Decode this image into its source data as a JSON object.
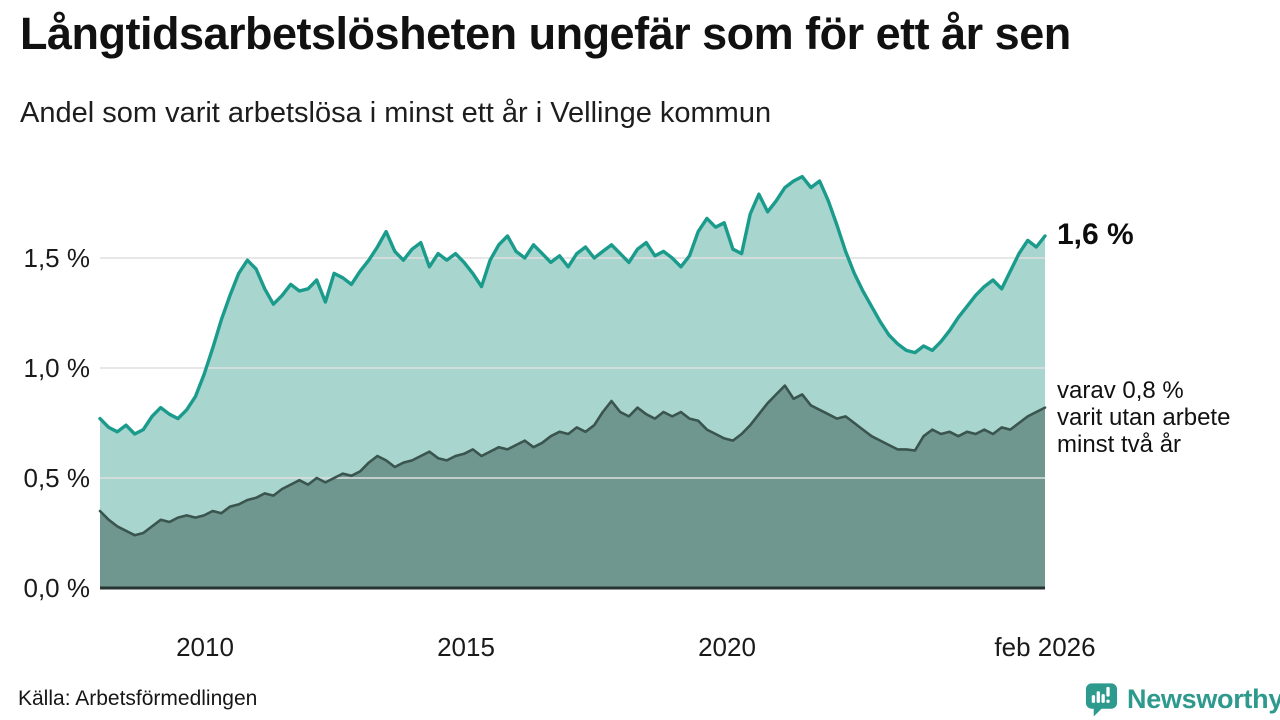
{
  "header": {
    "title": "Långtidsarbetslösheten ungefär som för ett år sen",
    "subtitle": "Andel som varit arbetslösa i minst ett år i Vellinge kommun"
  },
  "annotations": {
    "latest_total": "1,6 %",
    "two_year_lines": [
      "varav 0,8 %",
      "varit utan arbete",
      "minst två år"
    ]
  },
  "footer": {
    "source": "Källa: Arbetsförmedlingen",
    "logo_text": "Newsworthy"
  },
  "colors": {
    "total_line": "#1b9b8c",
    "total_fill": "#a8d5ce",
    "two_year_line": "#3a544e",
    "two_year_fill": "#6f968f",
    "gridline": "#dfdfdf",
    "axis_line": "#263330",
    "brand_teal": "#2d9a8d",
    "text": "#111111"
  },
  "chart_data": {
    "type": "area",
    "title": "Långtidsarbetslösheten ungefär som för ett år sen",
    "subtitle": "Andel som varit arbetslösa i minst ett år i Vellinge kommun",
    "unit": "%",
    "x_start_year": 2008.0,
    "x_end_year": 2026.0833,
    "x_step_months": 2,
    "x_ticks": [
      2010,
      2015,
      2020,
      2026.0833
    ],
    "x_tick_labels": [
      "2010",
      "2015",
      "2020",
      "feb 2026"
    ],
    "y_ticks": [
      0,
      0.5,
      1.0,
      1.5
    ],
    "y_tick_labels": [
      "0,0 %",
      "0,5 %",
      "1,0 %",
      "1,5 %"
    ],
    "ylim": [
      0,
      1.9
    ],
    "grid": "horizontal",
    "legend_position": "right-annotations",
    "series": [
      {
        "name": "Arbetslösa minst ett år",
        "latest_value": 1.6,
        "line_color": "#1b9b8c",
        "fill_color": "#a8d5ce",
        "values": [
          0.77,
          0.73,
          0.71,
          0.74,
          0.7,
          0.72,
          0.78,
          0.82,
          0.79,
          0.77,
          0.81,
          0.87,
          0.97,
          1.09,
          1.22,
          1.33,
          1.43,
          1.49,
          1.45,
          1.36,
          1.29,
          1.33,
          1.38,
          1.35,
          1.36,
          1.4,
          1.3,
          1.43,
          1.41,
          1.38,
          1.44,
          1.49,
          1.55,
          1.62,
          1.53,
          1.49,
          1.54,
          1.57,
          1.46,
          1.52,
          1.49,
          1.52,
          1.48,
          1.43,
          1.37,
          1.49,
          1.56,
          1.6,
          1.53,
          1.5,
          1.56,
          1.52,
          1.48,
          1.51,
          1.46,
          1.52,
          1.55,
          1.5,
          1.53,
          1.56,
          1.52,
          1.48,
          1.54,
          1.57,
          1.51,
          1.53,
          1.5,
          1.46,
          1.51,
          1.62,
          1.68,
          1.64,
          1.66,
          1.54,
          1.52,
          1.7,
          1.79,
          1.71,
          1.76,
          1.82,
          1.85,
          1.87,
          1.82,
          1.85,
          1.76,
          1.65,
          1.53,
          1.43,
          1.35,
          1.28,
          1.21,
          1.15,
          1.11,
          1.08,
          1.07,
          1.1,
          1.08,
          1.12,
          1.17,
          1.23,
          1.28,
          1.33,
          1.37,
          1.4,
          1.36,
          1.44,
          1.52,
          1.58,
          1.55,
          1.6
        ]
      },
      {
        "name": "varav utan arbete minst två år",
        "latest_value": 0.8,
        "line_color": "#3a544e",
        "fill_color": "#6f968f",
        "values": [
          0.35,
          0.31,
          0.28,
          0.26,
          0.24,
          0.25,
          0.28,
          0.31,
          0.3,
          0.32,
          0.33,
          0.32,
          0.33,
          0.35,
          0.34,
          0.37,
          0.38,
          0.4,
          0.41,
          0.43,
          0.42,
          0.45,
          0.47,
          0.49,
          0.47,
          0.5,
          0.48,
          0.5,
          0.52,
          0.51,
          0.53,
          0.57,
          0.6,
          0.58,
          0.55,
          0.57,
          0.58,
          0.6,
          0.62,
          0.59,
          0.58,
          0.6,
          0.61,
          0.63,
          0.6,
          0.62,
          0.64,
          0.63,
          0.65,
          0.67,
          0.64,
          0.66,
          0.69,
          0.71,
          0.7,
          0.73,
          0.71,
          0.74,
          0.8,
          0.85,
          0.8,
          0.78,
          0.82,
          0.79,
          0.77,
          0.8,
          0.78,
          0.8,
          0.77,
          0.76,
          0.72,
          0.7,
          0.68,
          0.67,
          0.7,
          0.74,
          0.79,
          0.84,
          0.88,
          0.92,
          0.86,
          0.88,
          0.83,
          0.81,
          0.79,
          0.77,
          0.78,
          0.75,
          0.72,
          0.69,
          0.67,
          0.65,
          0.63,
          0.63,
          0.625,
          0.69,
          0.72,
          0.7,
          0.71,
          0.69,
          0.71,
          0.7,
          0.72,
          0.7,
          0.73,
          0.72,
          0.75,
          0.78,
          0.8,
          0.82
        ]
      }
    ]
  }
}
